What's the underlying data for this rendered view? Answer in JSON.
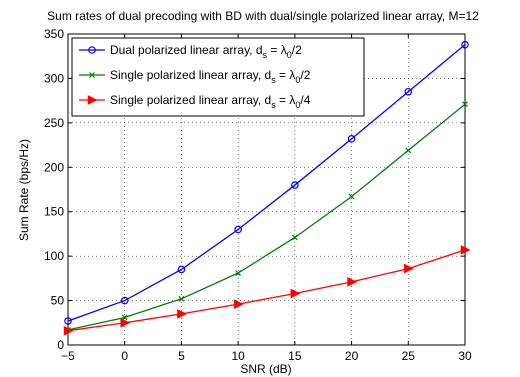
{
  "chart_data": {
    "type": "line",
    "title": "Sum rates of dual precoding with BD with dual/single polarized linear array, M=12",
    "xlabel": "SNR (dB)",
    "ylabel": "Sum Rate (bps/Hz)",
    "xlim": [
      -5,
      30
    ],
    "ylim": [
      0,
      350
    ],
    "xticks": [
      -5,
      0,
      5,
      10,
      15,
      20,
      25,
      30
    ],
    "xtick_labels": [
      "−5",
      "0",
      "5",
      "10",
      "15",
      "20",
      "25",
      "30"
    ],
    "yticks": [
      0,
      50,
      100,
      150,
      200,
      250,
      300,
      350
    ],
    "ytick_labels": [
      "0",
      "50",
      "100",
      "150",
      "200",
      "250",
      "300",
      "350"
    ],
    "grid": true,
    "legend_position": "top-left",
    "x": [
      -5,
      0,
      5,
      10,
      15,
      20,
      25,
      30
    ],
    "series": [
      {
        "name": "Dual polarized linear array, d_s = λ_0/2",
        "legend": {
          "pre": "Dual polarized linear array, d",
          "sub1": "s",
          "mid": " = λ",
          "sub2": "0",
          "post": "/2"
        },
        "color": "#0000ff",
        "marker": "circle",
        "values": [
          27,
          50,
          85,
          130,
          180,
          232,
          285,
          338
        ]
      },
      {
        "name": "Single polarized linear array, d_s = λ_0/2",
        "legend": {
          "pre": "Single polarized linear array, d",
          "sub1": "s",
          "mid": " = λ",
          "sub2": "0",
          "post": "/2"
        },
        "color": "#008000",
        "marker": "x",
        "values": [
          17,
          31,
          52,
          81,
          121,
          167,
          219,
          271
        ]
      },
      {
        "name": "Single polarized linear array, d_s = λ_0/4",
        "legend": {
          "pre": "Single polarized linear array, d",
          "sub1": "s",
          "mid": " = λ",
          "sub2": "0",
          "post": "/4"
        },
        "color": "#ff0000",
        "marker": "triangle-right",
        "values": [
          16,
          25,
          35,
          46,
          58,
          71,
          86,
          107
        ]
      }
    ]
  }
}
